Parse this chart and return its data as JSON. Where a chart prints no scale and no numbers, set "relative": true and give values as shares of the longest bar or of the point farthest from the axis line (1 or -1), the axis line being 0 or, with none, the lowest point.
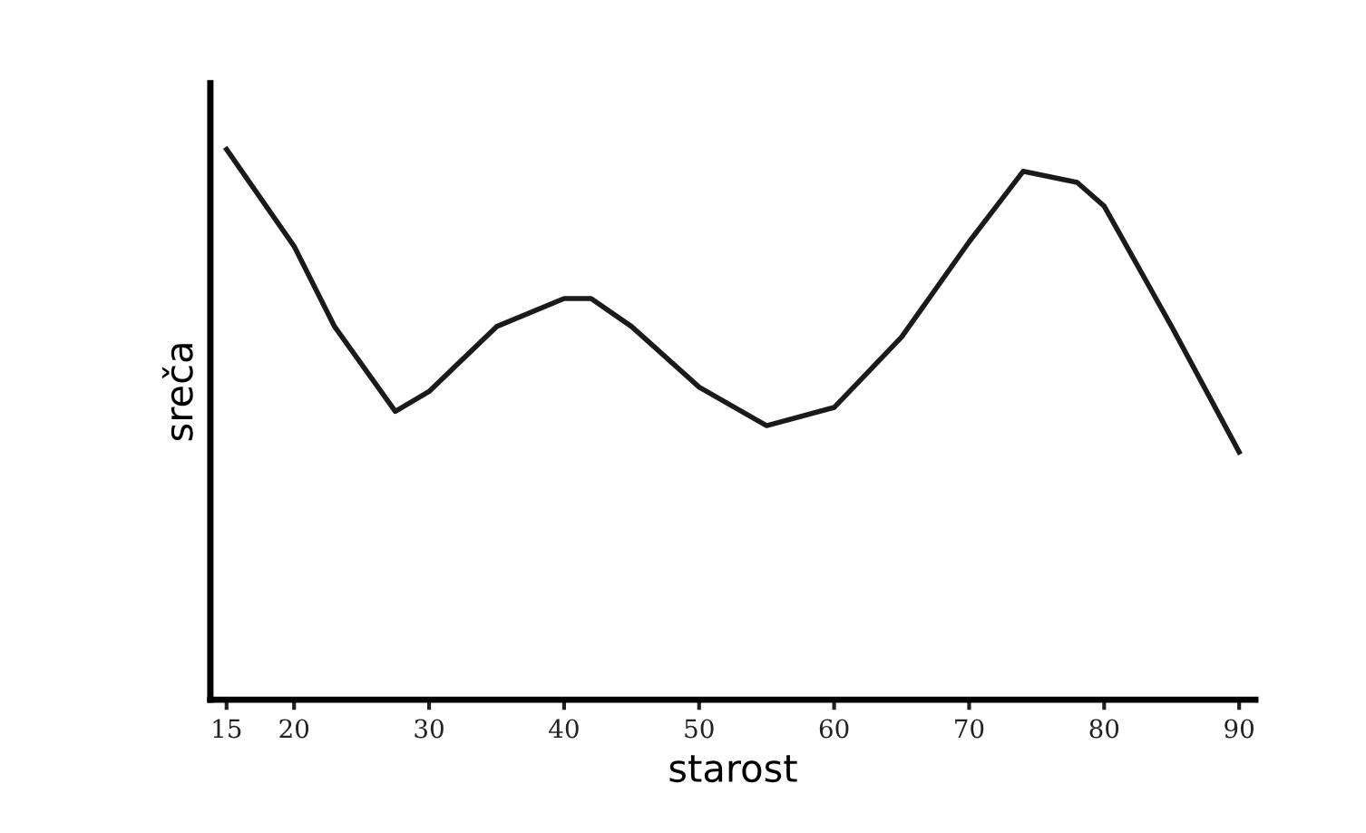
{
  "chart_data": {
    "type": "line",
    "relative": true,
    "xlabel": "starost",
    "ylabel": "sreča",
    "x": [
      15,
      20,
      23,
      27.5,
      30,
      35,
      40,
      42,
      45,
      50,
      55,
      60,
      65,
      70,
      74,
      78,
      80,
      85,
      90
    ],
    "series": [
      {
        "color": "#1a1a1a",
        "values": [
          1.0,
          0.824,
          0.678,
          0.524,
          0.56,
          0.678,
          0.729,
          0.729,
          0.678,
          0.568,
          0.498,
          0.531,
          0.659,
          0.832,
          0.96,
          0.94,
          0.897,
          0.678,
          0.45
        ]
      }
    ],
    "xlim": [
      13.8,
      91.2
    ],
    "xticks": [
      15,
      20,
      30,
      40,
      50,
      60,
      70,
      80,
      90
    ],
    "tick_labels": "x",
    "grid": false,
    "legend": false,
    "marker": "none",
    "line_style": "solid"
  }
}
